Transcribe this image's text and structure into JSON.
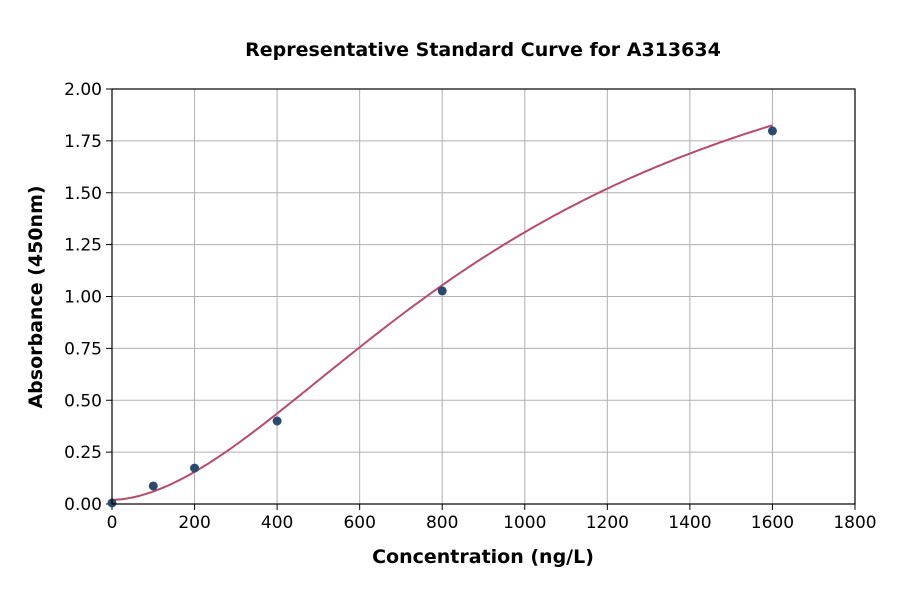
{
  "chart_data": {
    "type": "scatter",
    "title": "Representative Standard Curve for A313634",
    "xlabel": "Concentration (ng/L)",
    "ylabel": "Absorbance (450nm)",
    "xlim": [
      0,
      1800
    ],
    "ylim": [
      0,
      2.0
    ],
    "xticks": [
      "0",
      "200",
      "400",
      "600",
      "800",
      "1000",
      "1200",
      "1400",
      "1600",
      "1800"
    ],
    "yticks": [
      "0.00",
      "0.25",
      "0.50",
      "0.75",
      "1.00",
      "1.25",
      "1.50",
      "1.75",
      "2.00"
    ],
    "grid": true,
    "points": {
      "x": [
        0,
        100,
        200,
        400,
        800,
        1600
      ],
      "y": [
        0.005,
        0.087,
        0.173,
        0.4,
        1.027,
        1.798
      ]
    },
    "fit_curve": "4-parameter logistic",
    "colors": {
      "points": "#2d4a6e",
      "curve": "#b84a6e",
      "grid": "#b0b0b0"
    }
  }
}
